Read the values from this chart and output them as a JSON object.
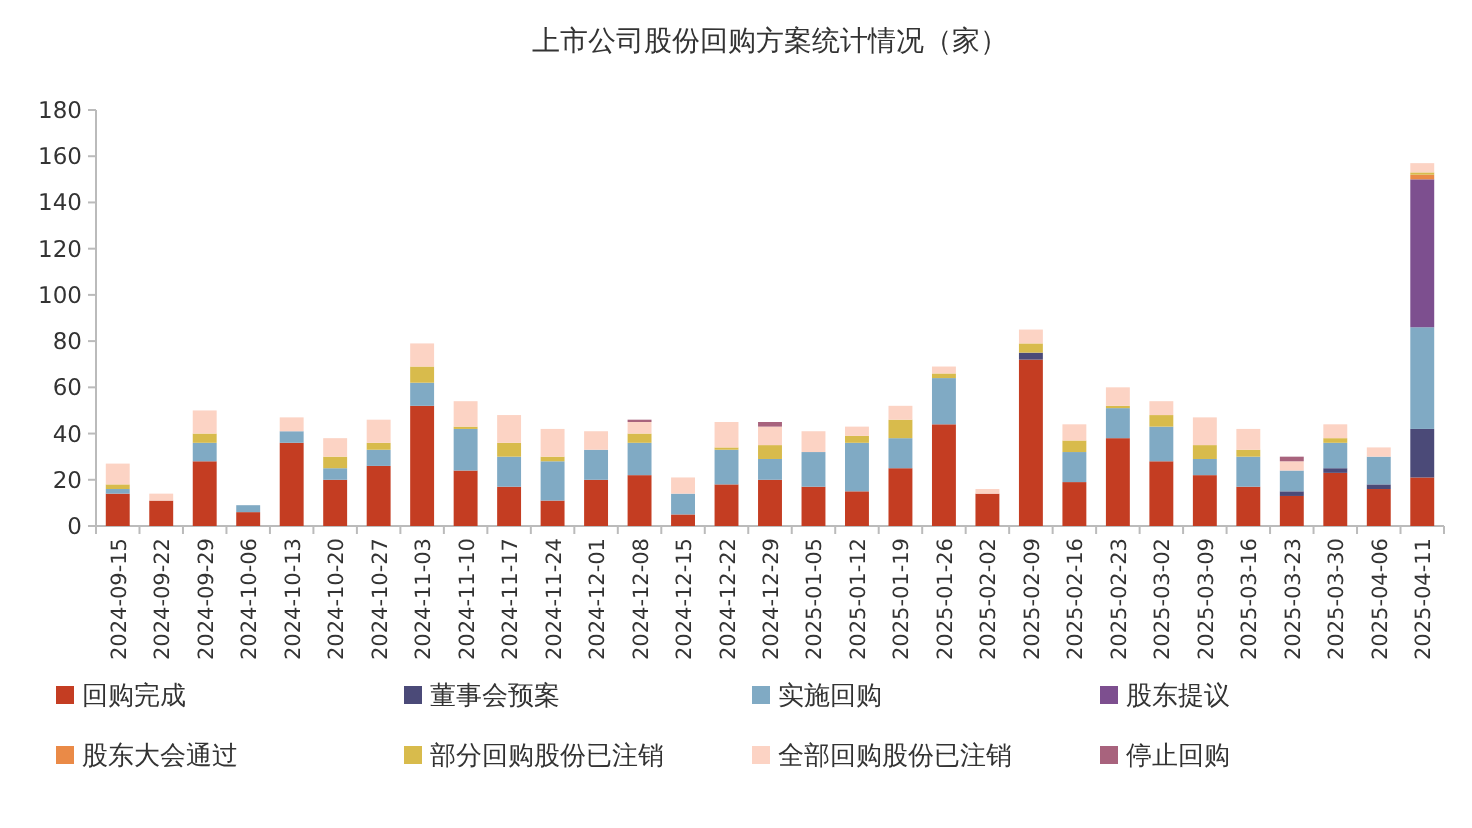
{
  "chart_data": {
    "type": "bar",
    "title": "上市公司股份回购方案统计情况（家）",
    "stacked": true,
    "legend": "bottom",
    "categories": [
      "2024-09-15",
      "2024-09-22",
      "2024-09-29",
      "2024-10-06",
      "2024-10-13",
      "2024-10-20",
      "2024-10-27",
      "2024-11-03",
      "2024-11-10",
      "2024-11-17",
      "2024-11-24",
      "2024-12-01",
      "2024-12-08",
      "2024-12-15",
      "2024-12-22",
      "2024-12-29",
      "2025-01-05",
      "2025-01-12",
      "2025-01-19",
      "2025-01-26",
      "2025-02-02",
      "2025-02-09",
      "2025-02-16",
      "2025-02-23",
      "2025-03-02",
      "2025-03-09",
      "2025-03-16",
      "2025-03-23",
      "2025-03-30",
      "2025-04-06",
      "2025-04-11"
    ],
    "ylim": [
      0,
      180
    ],
    "yticks": [
      0,
      20,
      40,
      60,
      80,
      100,
      120,
      140,
      160,
      180
    ],
    "series": [
      {
        "name": "回购完成",
        "color": "#c43d22",
        "values": [
          14,
          11,
          28,
          6,
          36,
          20,
          26,
          52,
          24,
          17,
          11,
          20,
          22,
          5,
          18,
          20,
          17,
          15,
          25,
          44,
          14,
          72,
          19,
          38,
          28,
          22,
          17,
          13,
          23,
          16,
          21
        ]
      },
      {
        "name": "董事会预案",
        "color": "#4b4a78",
        "values": [
          null,
          null,
          null,
          null,
          null,
          null,
          null,
          null,
          null,
          null,
          null,
          null,
          null,
          null,
          null,
          null,
          null,
          null,
          null,
          null,
          null,
          3,
          null,
          null,
          null,
          null,
          null,
          2,
          2,
          2,
          21
        ]
      },
      {
        "name": "实施回购",
        "color": "#80aac4",
        "values": [
          2,
          null,
          8,
          3,
          5,
          5,
          7,
          10,
          18,
          13,
          17,
          13,
          14,
          9,
          15,
          9,
          15,
          21,
          13,
          20,
          null,
          null,
          13,
          13,
          15,
          7,
          13,
          9,
          11,
          12,
          44
        ]
      },
      {
        "name": "股东提议",
        "color": "#7d4f8f",
        "values": [
          null,
          null,
          null,
          null,
          null,
          null,
          null,
          null,
          null,
          null,
          null,
          null,
          null,
          null,
          null,
          null,
          null,
          null,
          null,
          null,
          null,
          null,
          null,
          null,
          null,
          null,
          null,
          null,
          null,
          null,
          64
        ]
      },
      {
        "name": "股东大会通过",
        "color": "#ea8a47",
        "values": [
          null,
          null,
          null,
          null,
          null,
          null,
          null,
          null,
          null,
          null,
          null,
          null,
          null,
          null,
          null,
          null,
          null,
          null,
          null,
          null,
          null,
          null,
          null,
          null,
          null,
          null,
          null,
          null,
          null,
          null,
          2
        ]
      },
      {
        "name": "部分回购股份已注销",
        "color": "#d8bb4c",
        "values": [
          2,
          null,
          4,
          null,
          null,
          5,
          3,
          7,
          1,
          6,
          2,
          null,
          4,
          null,
          1,
          6,
          null,
          3,
          8,
          2,
          null,
          4,
          5,
          1,
          5,
          6,
          3,
          null,
          2,
          null,
          1
        ]
      },
      {
        "name": "全部回购股份已注销",
        "color": "#fcd3c4",
        "values": [
          9,
          3,
          10,
          null,
          6,
          8,
          10,
          10,
          11,
          12,
          12,
          8,
          5,
          7,
          11,
          8,
          9,
          4,
          6,
          3,
          2,
          6,
          7,
          8,
          6,
          12,
          9,
          4,
          6,
          4,
          4
        ]
      },
      {
        "name": "停止回购",
        "color": "#a8637d",
        "values": [
          null,
          null,
          null,
          null,
          null,
          null,
          null,
          null,
          null,
          null,
          null,
          null,
          1,
          null,
          null,
          2,
          null,
          null,
          null,
          null,
          null,
          null,
          null,
          null,
          null,
          null,
          null,
          2,
          null,
          null,
          null
        ]
      }
    ]
  }
}
